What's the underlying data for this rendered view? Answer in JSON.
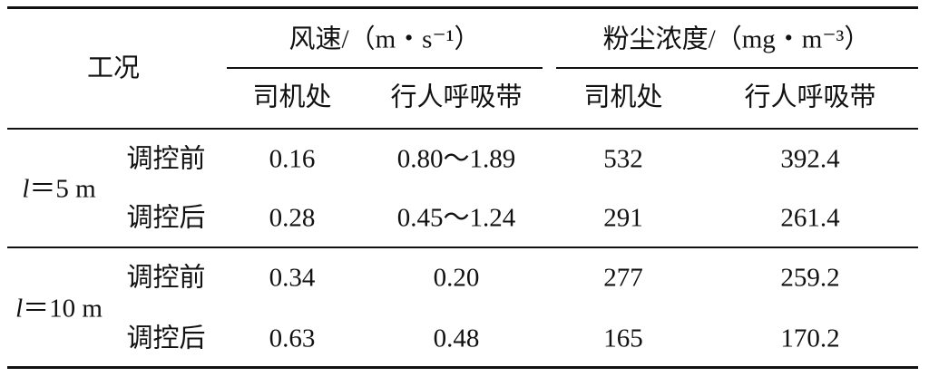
{
  "table": {
    "header": {
      "condition": "工况",
      "groups": [
        "风速/（m・s⁻¹）",
        "粉尘浓度/（mg・m⁻³）"
      ],
      "subheaders": [
        "司机处",
        "行人呼吸带",
        "司机处",
        "行人呼吸带"
      ]
    },
    "groups": [
      {
        "symbol": "l",
        "label": "＝5 m",
        "rows": [
          {
            "label": "调控前",
            "cells": [
              "0.16",
              "0.80～1.89",
              "532",
              "392.4"
            ]
          },
          {
            "label": "调控后",
            "cells": [
              "0.28",
              "0.45～1.24",
              "291",
              "261.4"
            ]
          }
        ]
      },
      {
        "symbol": "l",
        "label": "＝10 m",
        "rows": [
          {
            "label": "调控前",
            "cells": [
              "0.34",
              "0.20",
              "277",
              "259.2"
            ]
          },
          {
            "label": "调控后",
            "cells": [
              "0.63",
              "0.48",
              "165",
              "170.2"
            ]
          }
        ]
      }
    ]
  }
}
